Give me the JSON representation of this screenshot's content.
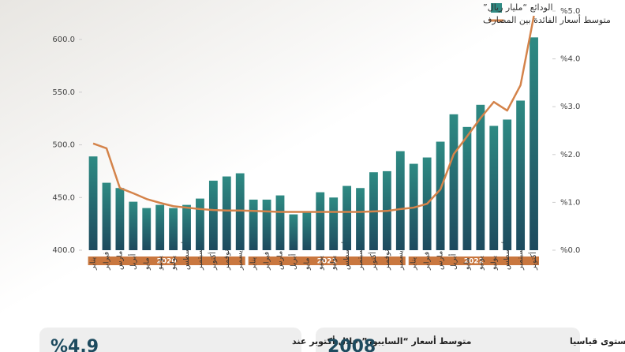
{
  "chart_data": {
    "type": "bar",
    "ylim": [
      400,
      627
    ],
    "yticks": [
      {
        "value": 400,
        "label": "400.0"
      },
      {
        "value": 450,
        "label": "450.0"
      },
      {
        "value": 500,
        "label": "500.0"
      },
      {
        "value": 550,
        "label": "550.0"
      },
      {
        "value": 600,
        "label": "600.0"
      }
    ],
    "y2lim": [
      0,
      5
    ],
    "y2ticks": [
      {
        "value": 0,
        "label": "%0.0"
      },
      {
        "value": 1,
        "label": "%1.0"
      },
      {
        "value": 2,
        "label": "%2.0"
      },
      {
        "value": 3,
        "label": "%3.0"
      },
      {
        "value": 4,
        "label": "%4.0"
      },
      {
        "value": 5,
        "label": "%5.0"
      }
    ],
    "groups": [
      {
        "label": "2020",
        "color": "#c9773f",
        "categories": [
          "يناير",
          "فبراير",
          "مارس",
          "أبريل",
          "مايو",
          "يونيو",
          "يوليو",
          "أغسطس",
          "سبتمبر",
          "أكتوبر",
          "نوفمبر",
          "ديسمبر"
        ]
      },
      {
        "label": "2021",
        "color": "#c9773f",
        "categories": [
          "يناير",
          "فبراير",
          "مارس",
          "أبريل",
          "مايو",
          "يونيو",
          "يوليو",
          "أغسطس",
          "سبتمبر",
          "أكتوبر",
          "نوفمبر",
          "ديسمبر"
        ]
      },
      {
        "label": "2022",
        "color": "#c9773f",
        "categories": [
          "يناير",
          "فبراير",
          "مارس",
          "أبريل",
          "مايو",
          "يونيو",
          "يوليو",
          "أغسطس",
          "سبتمبر",
          "أكتوبر"
        ]
      }
    ],
    "series": [
      {
        "name": "الودائع “مليار ريال”",
        "type": "bar",
        "color": "#2e8a83",
        "values": [
          489,
          464,
          459,
          446,
          440,
          443,
          440,
          443,
          449,
          466,
          470,
          473,
          448,
          448,
          452,
          434,
          437,
          455,
          450,
          461,
          459,
          474,
          475,
          494,
          482,
          488,
          503,
          529,
          517,
          538,
          518,
          524,
          542,
          602
        ]
      },
      {
        "name": "متوسط أسعار الفائدة بين المصارف",
        "type": "line",
        "axis": "y2",
        "color": "#d4834a",
        "values": [
          2.23,
          2.13,
          1.3,
          1.19,
          1.07,
          0.99,
          0.92,
          0.89,
          0.86,
          0.84,
          0.83,
          0.83,
          0.82,
          0.81,
          0.8,
          0.8,
          0.8,
          0.8,
          0.8,
          0.8,
          0.8,
          0.81,
          0.82,
          0.86,
          0.89,
          0.97,
          1.27,
          2.01,
          2.38,
          2.76,
          3.1,
          2.92,
          3.45,
          4.9
        ]
      }
    ]
  },
  "cards": [
    {
      "text": "متوسط أسعار “السايبور” خلال أكتوبر عند",
      "figure": "%4.9"
    },
    {
      "text": "الودائع الادخارية تبلغ مستوى قياسيا",
      "figure": "2008"
    }
  ]
}
